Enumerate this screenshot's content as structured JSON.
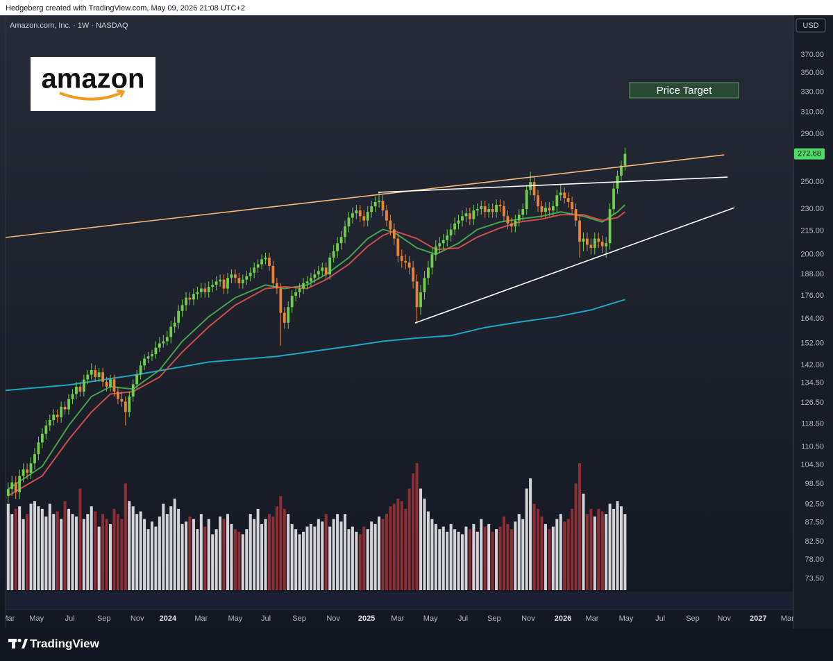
{
  "header": {
    "attribution": "Hedgeberg created with TradingView.com, May 09, 2026 21:08 UTC+2",
    "instrument": "Amazon.com, Inc. · 1W · NASDAQ",
    "currency": "USD"
  },
  "logo_text": "amazon",
  "footer": "TradingView",
  "chart_data": {
    "type": "candlestick",
    "log_scale": true,
    "ylim": [
      71,
      411
    ],
    "yticks": [
      {
        "value": 370,
        "label": "370.00"
      },
      {
        "value": 350,
        "label": "350.00"
      },
      {
        "value": 330,
        "label": "330.00"
      },
      {
        "value": 310,
        "label": "310.00"
      },
      {
        "value": 290,
        "label": "290.00"
      },
      {
        "value": 250,
        "label": "250.00"
      },
      {
        "value": 230,
        "label": "230.00"
      },
      {
        "value": 215,
        "label": "215.00"
      },
      {
        "value": 200,
        "label": "200.00"
      },
      {
        "value": 188,
        "label": "188.00"
      },
      {
        "value": 176,
        "label": "176.00"
      },
      {
        "value": 164,
        "label": "164.00"
      },
      {
        "value": 152,
        "label": "152.00"
      },
      {
        "value": 142,
        "label": "142.00"
      },
      {
        "value": 134.5,
        "label": "134.50"
      },
      {
        "value": 126.5,
        "label": "126.50"
      },
      {
        "value": 118.5,
        "label": "118.50"
      },
      {
        "value": 110.5,
        "label": "110.50"
      },
      {
        "value": 104.5,
        "label": "104.50"
      },
      {
        "value": 98.5,
        "label": "98.50"
      },
      {
        "value": 92.5,
        "label": "92.50"
      },
      {
        "value": 87.5,
        "label": "87.50"
      },
      {
        "value": 82.5,
        "label": "82.50"
      },
      {
        "value": 78,
        "label": "78.00"
      },
      {
        "value": 73.5,
        "label": "73.50"
      }
    ],
    "xlim": [
      -0.7,
      207.5
    ],
    "xticks": [
      {
        "value": 0,
        "label": "Mar"
      },
      {
        "value": 7.5,
        "label": "May"
      },
      {
        "value": 16.3,
        "label": "Jul"
      },
      {
        "value": 25.3,
        "label": "Sep"
      },
      {
        "value": 34.1,
        "label": "Nov"
      },
      {
        "value": 42.2,
        "label": "2024"
      },
      {
        "value": 51,
        "label": "Mar"
      },
      {
        "value": 60,
        "label": "May"
      },
      {
        "value": 68.1,
        "label": "Jul"
      },
      {
        "value": 76.9,
        "label": "Sep"
      },
      {
        "value": 85.9,
        "label": "Nov"
      },
      {
        "value": 94.7,
        "label": "2025"
      },
      {
        "value": 102.9,
        "label": "Mar"
      },
      {
        "value": 111.6,
        "label": "May"
      },
      {
        "value": 120.2,
        "label": "Jul"
      },
      {
        "value": 128.4,
        "label": "Sep"
      },
      {
        "value": 137.4,
        "label": "Nov"
      },
      {
        "value": 146.6,
        "label": "2026"
      },
      {
        "value": 154.3,
        "label": "Mar"
      },
      {
        "value": 163.3,
        "label": "May"
      },
      {
        "value": 172.3,
        "label": "Jul"
      },
      {
        "value": 180.9,
        "label": "Sep"
      },
      {
        "value": 189.2,
        "label": "Nov"
      },
      {
        "value": 198.2,
        "label": "2027"
      },
      {
        "value": 205.9,
        "label": "Mar"
      }
    ],
    "up_color": "#6fcf4b",
    "down_color": "#e8843a",
    "candles": [
      [
        95,
        99,
        93,
        97
      ],
      [
        97,
        101,
        95,
        99
      ],
      [
        99,
        101,
        94,
        96
      ],
      [
        96,
        103,
        94,
        101
      ],
      [
        101,
        105,
        99,
        103
      ],
      [
        103,
        105,
        100,
        102
      ],
      [
        102,
        107,
        100,
        105
      ],
      [
        105,
        110,
        103,
        108
      ],
      [
        108,
        114,
        106,
        112
      ],
      [
        112,
        117,
        110,
        115
      ],
      [
        115,
        120,
        113,
        118
      ],
      [
        118,
        122,
        116,
        120
      ],
      [
        120,
        124,
        118,
        122
      ],
      [
        122,
        124,
        119,
        121
      ],
      [
        121,
        127,
        119,
        125
      ],
      [
        125,
        127,
        122,
        124
      ],
      [
        124,
        130,
        122,
        128
      ],
      [
        128,
        132,
        126,
        130
      ],
      [
        130,
        135,
        128,
        133
      ],
      [
        133,
        135,
        129,
        131
      ],
      [
        131,
        138,
        129,
        136
      ],
      [
        136,
        140,
        134,
        138
      ],
      [
        138,
        143,
        136,
        140
      ],
      [
        140,
        142,
        135,
        137
      ],
      [
        137,
        141,
        135,
        139
      ],
      [
        139,
        141,
        133,
        135
      ],
      [
        135,
        137,
        131,
        133
      ],
      [
        133,
        138,
        131,
        136
      ],
      [
        136,
        138,
        129,
        131
      ],
      [
        131,
        133,
        126,
        128
      ],
      [
        128,
        131,
        125,
        127
      ],
      [
        127,
        129,
        118,
        123
      ],
      [
        123,
        131,
        121,
        129
      ],
      [
        129,
        136,
        127,
        134
      ],
      [
        134,
        140,
        132,
        138
      ],
      [
        138,
        144,
        136,
        142
      ],
      [
        142,
        147,
        140,
        145
      ],
      [
        145,
        148,
        143,
        146
      ],
      [
        146,
        149,
        144,
        147
      ],
      [
        147,
        153,
        145,
        150
      ],
      [
        150,
        155,
        148,
        152
      ],
      [
        152,
        156,
        150,
        153
      ],
      [
        153,
        158,
        151,
        155
      ],
      [
        155,
        163,
        152,
        160
      ],
      [
        160,
        165,
        157,
        162
      ],
      [
        162,
        171,
        159,
        168
      ],
      [
        168,
        174,
        165,
        171
      ],
      [
        171,
        178,
        168,
        175
      ],
      [
        175,
        178,
        171,
        174
      ],
      [
        174,
        180,
        171,
        177
      ],
      [
        177,
        181,
        174,
        178
      ],
      [
        178,
        183,
        175,
        180
      ],
      [
        180,
        183,
        175,
        178
      ],
      [
        178,
        184,
        175,
        181
      ],
      [
        181,
        185,
        178,
        182
      ],
      [
        182,
        187,
        179,
        184
      ],
      [
        184,
        188,
        181,
        185
      ],
      [
        185,
        188,
        177,
        180
      ],
      [
        180,
        189,
        177,
        186
      ],
      [
        186,
        191,
        183,
        188
      ],
      [
        188,
        191,
        183,
        186
      ],
      [
        186,
        189,
        180,
        183
      ],
      [
        183,
        188,
        180,
        185
      ],
      [
        185,
        190,
        182,
        187
      ],
      [
        187,
        192,
        184,
        189
      ],
      [
        189,
        195,
        186,
        192
      ],
      [
        192,
        197,
        189,
        194
      ],
      [
        194,
        200,
        191,
        197
      ],
      [
        197,
        201,
        194,
        198
      ],
      [
        198,
        201,
        190,
        193
      ],
      [
        193,
        196,
        180,
        183
      ],
      [
        183,
        186,
        177,
        180
      ],
      [
        180,
        183,
        151,
        167
      ],
      [
        167,
        170,
        159,
        162
      ],
      [
        162,
        173,
        159,
        170
      ],
      [
        170,
        179,
        167,
        176
      ],
      [
        176,
        181,
        173,
        178
      ],
      [
        178,
        183,
        175,
        180
      ],
      [
        180,
        186,
        177,
        183
      ],
      [
        183,
        187,
        180,
        184
      ],
      [
        184,
        189,
        181,
        186
      ],
      [
        186,
        191,
        183,
        188
      ],
      [
        188,
        193,
        185,
        190
      ],
      [
        190,
        195,
        187,
        192
      ],
      [
        192,
        195,
        185,
        188
      ],
      [
        188,
        201,
        185,
        198
      ],
      [
        198,
        206,
        195,
        202
      ],
      [
        202,
        211,
        198,
        207
      ],
      [
        207,
        215,
        203,
        211
      ],
      [
        211,
        222,
        207,
        218
      ],
      [
        218,
        228,
        214,
        224
      ],
      [
        224,
        231,
        220,
        227
      ],
      [
        227,
        233,
        223,
        229
      ],
      [
        229,
        233,
        221,
        225
      ],
      [
        225,
        229,
        218,
        222
      ],
      [
        222,
        232,
        218,
        228
      ],
      [
        228,
        236,
        224,
        232
      ],
      [
        232,
        239,
        228,
        235
      ],
      [
        235,
        242,
        231,
        236
      ],
      [
        236,
        240,
        225,
        229
      ],
      [
        229,
        233,
        218,
        222
      ],
      [
        222,
        226,
        212,
        216
      ],
      [
        216,
        220,
        206,
        210
      ],
      [
        210,
        214,
        195,
        199
      ],
      [
        199,
        203,
        192,
        196
      ],
      [
        196,
        200,
        191,
        195
      ],
      [
        195,
        199,
        188,
        192
      ],
      [
        192,
        196,
        180,
        184
      ],
      [
        184,
        188,
        161.5,
        170
      ],
      [
        170,
        182,
        166,
        178
      ],
      [
        178,
        190,
        174,
        186
      ],
      [
        186,
        196,
        182,
        192
      ],
      [
        192,
        204,
        188,
        200
      ],
      [
        200,
        209,
        196,
        205
      ],
      [
        205,
        211,
        201,
        207
      ],
      [
        207,
        213,
        203,
        209
      ],
      [
        209,
        216,
        205,
        212
      ],
      [
        212,
        220,
        208,
        216
      ],
      [
        216,
        224,
        212,
        220
      ],
      [
        220,
        226,
        216,
        222
      ],
      [
        222,
        229,
        218,
        225
      ],
      [
        225,
        231,
        221,
        227
      ],
      [
        227,
        231,
        219,
        223
      ],
      [
        223,
        233,
        219,
        229
      ],
      [
        229,
        234,
        225,
        230
      ],
      [
        230,
        236,
        226,
        232
      ],
      [
        232,
        236,
        224,
        228
      ],
      [
        228,
        234,
        224,
        230
      ],
      [
        230,
        234,
        224,
        228
      ],
      [
        228,
        237,
        224,
        233
      ],
      [
        233,
        237,
        228,
        232
      ],
      [
        232,
        236,
        221,
        225
      ],
      [
        225,
        229,
        216,
        220
      ],
      [
        220,
        224,
        214,
        218
      ],
      [
        218,
        226,
        214,
        222
      ],
      [
        222,
        230,
        218,
        226
      ],
      [
        226,
        234,
        222,
        230
      ],
      [
        230,
        248,
        226,
        244
      ],
      [
        244,
        258,
        240,
        250
      ],
      [
        250,
        254,
        236,
        240
      ],
      [
        240,
        244,
        228,
        232
      ],
      [
        232,
        236,
        224,
        228
      ],
      [
        228,
        235,
        224,
        231
      ],
      [
        231,
        235,
        225,
        229
      ],
      [
        229,
        236,
        225,
        232
      ],
      [
        232,
        244,
        228,
        240
      ],
      [
        240,
        248,
        236,
        242
      ],
      [
        242,
        246,
        234,
        238
      ],
      [
        238,
        242,
        231,
        235
      ],
      [
        235,
        239,
        226,
        230
      ],
      [
        230,
        234,
        218,
        222
      ],
      [
        222,
        226,
        198,
        208
      ],
      [
        208,
        214,
        202,
        210
      ],
      [
        210,
        214,
        202,
        206
      ],
      [
        206,
        210,
        200,
        204
      ],
      [
        204,
        214,
        200,
        210
      ],
      [
        210,
        214,
        204,
        208
      ],
      [
        208,
        212,
        201,
        205
      ],
      [
        205,
        211,
        198,
        207
      ],
      [
        207,
        234,
        203,
        230
      ],
      [
        230,
        249,
        226,
        245
      ],
      [
        245,
        259,
        241,
        255
      ],
      [
        255,
        267,
        251,
        263
      ],
      [
        263,
        278,
        259,
        272.68
      ]
    ],
    "volume_up_color": "#d4d4d8",
    "volume_down_color": "#8c2f36",
    "volume": [
      170,
      150,
      160,
      165,
      140,
      150,
      170,
      175,
      165,
      160,
      145,
      170,
      150,
      155,
      140,
      175,
      160,
      150,
      145,
      200,
      140,
      150,
      165,
      155,
      125,
      150,
      140,
      130,
      160,
      150,
      140,
      210,
      175,
      165,
      150,
      155,
      140,
      120,
      135,
      125,
      145,
      170,
      150,
      165,
      180,
      160,
      130,
      135,
      145,
      140,
      120,
      150,
      125,
      140,
      110,
      120,
      145,
      140,
      150,
      130,
      120,
      115,
      110,
      120,
      150,
      140,
      160,
      130,
      140,
      150,
      145,
      165,
      185,
      160,
      150,
      130,
      120,
      110,
      115,
      125,
      130,
      125,
      140,
      135,
      150,
      125,
      140,
      150,
      135,
      150,
      120,
      125,
      115,
      110,
      125,
      120,
      135,
      130,
      145,
      140,
      150,
      165,
      170,
      180,
      175,
      160,
      200,
      230,
      250,
      200,
      180,
      155,
      140,
      130,
      120,
      125,
      115,
      130,
      120,
      115,
      110,
      125,
      120,
      130,
      115,
      140,
      125,
      130,
      115,
      120,
      125,
      145,
      130,
      120,
      135,
      150,
      140,
      200,
      220,
      170,
      160,
      145,
      130,
      120,
      125,
      140,
      150,
      135,
      140,
      160,
      210,
      250,
      190,
      150,
      160,
      145,
      160,
      155,
      150,
      170,
      160,
      175,
      165,
      150
    ],
    "last_price": 272.68,
    "last_price_color": "#4cd964",
    "lines": [
      {
        "color": "#1fb5d6",
        "x": [
          -0.7,
          16,
          34,
          53,
          71,
          90,
          99,
          108,
          117,
          126,
          135,
          145,
          154,
          163
        ],
        "values": [
          131.5,
          133.7,
          138,
          143.5,
          146,
          150.6,
          153,
          154.5,
          155.7,
          159.6,
          162.3,
          165,
          168.5,
          174
        ]
      },
      {
        "color": "#4caf50",
        "x": [
          0,
          9,
          16,
          22,
          27,
          33,
          40,
          46,
          53,
          60,
          68,
          73,
          79,
          84,
          90,
          95,
          99,
          102,
          108,
          113,
          119,
          124,
          130,
          135,
          141,
          146,
          152,
          157,
          161,
          163
        ],
        "values": [
          97,
          104,
          118,
          129,
          133,
          132,
          140,
          153,
          165,
          175,
          182,
          180,
          182,
          188,
          198,
          210,
          216,
          214,
          204,
          200,
          207,
          216,
          221,
          223,
          225,
          228,
          225,
          221,
          228,
          233
        ]
      },
      {
        "color": "#e05252",
        "x": [
          0,
          9,
          16,
          22,
          27,
          33,
          40,
          46,
          53,
          60,
          68,
          73,
          79,
          84,
          90,
          95,
          99,
          102,
          108,
          113,
          119,
          124,
          130,
          135,
          141,
          146,
          152,
          157,
          161,
          163
        ],
        "values": [
          95,
          101,
          113,
          123,
          130,
          131,
          137,
          148,
          160,
          171,
          180,
          181,
          180,
          185,
          194,
          205,
          212,
          215,
          210,
          203,
          204,
          211,
          217,
          221,
          223,
          226,
          226,
          222,
          224,
          228
        ]
      }
    ],
    "trend_lines": [
      {
        "color": "#f5b97a",
        "x": [
          -0.7,
          189.2
        ],
        "values": [
          210.7,
          271.8
        ]
      },
      {
        "color": "#ffffff",
        "x": [
          97.8,
          190.1
        ],
        "values": [
          242.2,
          253.8
        ]
      },
      {
        "color": "#ffffff",
        "x": [
          107.5,
          191.9
        ],
        "values": [
          161.9,
          231
        ]
      }
    ],
    "annotation": "Price Target"
  }
}
